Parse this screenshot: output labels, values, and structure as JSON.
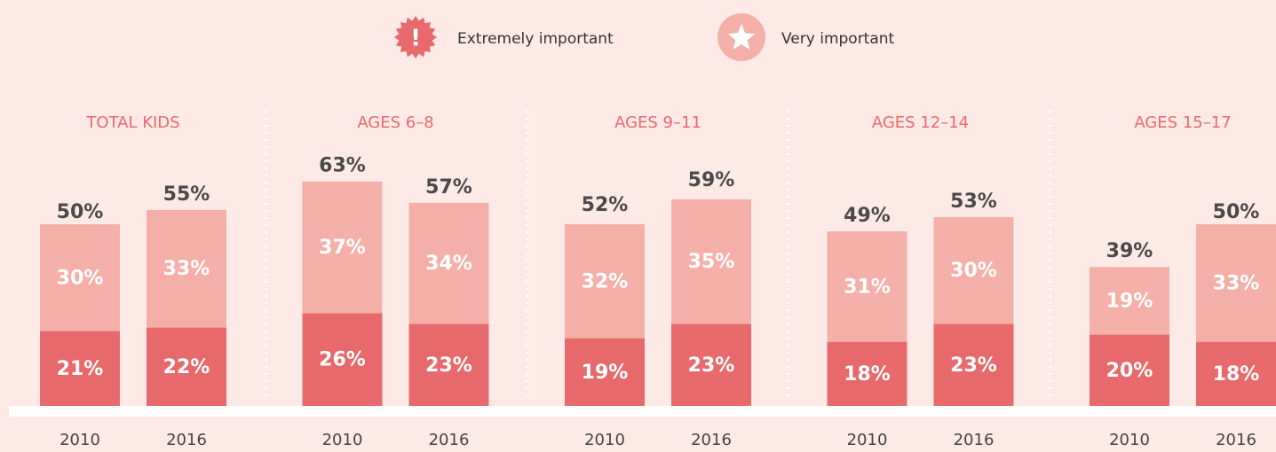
{
  "chart_data": {
    "type": "bar",
    "stacked": true,
    "series": [
      {
        "name": "Extremely important",
        "color": "#e8696b"
      },
      {
        "name": "Very important",
        "color": "#f4b0a8"
      }
    ],
    "groups": [
      {
        "title": "TOTAL KIDS",
        "categories": [
          "2010",
          "2016"
        ],
        "series": [
          {
            "values": [
              21,
              22
            ],
            "value_labels": [
              "21%",
              "22%"
            ]
          },
          {
            "values": [
              30,
              33
            ],
            "value_labels": [
              "30%",
              "33%"
            ]
          }
        ],
        "totals": [
          50,
          55
        ],
        "total_labels": [
          "50%",
          "55%"
        ]
      },
      {
        "title": "AGES 6–8",
        "categories": [
          "2010",
          "2016"
        ],
        "series": [
          {
            "values": [
              26,
              23
            ],
            "value_labels": [
              "26%",
              "23%"
            ]
          },
          {
            "values": [
              37,
              34
            ],
            "value_labels": [
              "37%",
              "34%"
            ]
          }
        ],
        "totals": [
          63,
          57
        ],
        "total_labels": [
          "63%",
          "57%"
        ]
      },
      {
        "title": "AGES 9–11",
        "categories": [
          "2010",
          "2016"
        ],
        "series": [
          {
            "values": [
              19,
              23
            ],
            "value_labels": [
              "19%",
              "23%"
            ]
          },
          {
            "values": [
              32,
              35
            ],
            "value_labels": [
              "32%",
              "35%"
            ]
          }
        ],
        "totals": [
          52,
          59
        ],
        "total_labels": [
          "52%",
          "59%"
        ]
      },
      {
        "title": "AGES 12–14",
        "categories": [
          "2010",
          "2016"
        ],
        "series": [
          {
            "values": [
              18,
              23
            ],
            "value_labels": [
              "18%",
              "23%"
            ]
          },
          {
            "values": [
              31,
              30
            ],
            "value_labels": [
              "31%",
              "30%"
            ]
          }
        ],
        "totals": [
          49,
          53
        ],
        "total_labels": [
          "49%",
          "53%"
        ]
      },
      {
        "title": "AGES 15–17",
        "categories": [
          "2010",
          "2016"
        ],
        "series": [
          {
            "values": [
              20,
              18
            ],
            "value_labels": [
              "20%",
              "18%"
            ]
          },
          {
            "values": [
              19,
              33
            ],
            "value_labels": [
              "19%",
              "33%"
            ]
          }
        ],
        "totals": [
          39,
          50
        ],
        "total_labels": [
          "39%",
          "50%"
        ]
      }
    ]
  }
}
